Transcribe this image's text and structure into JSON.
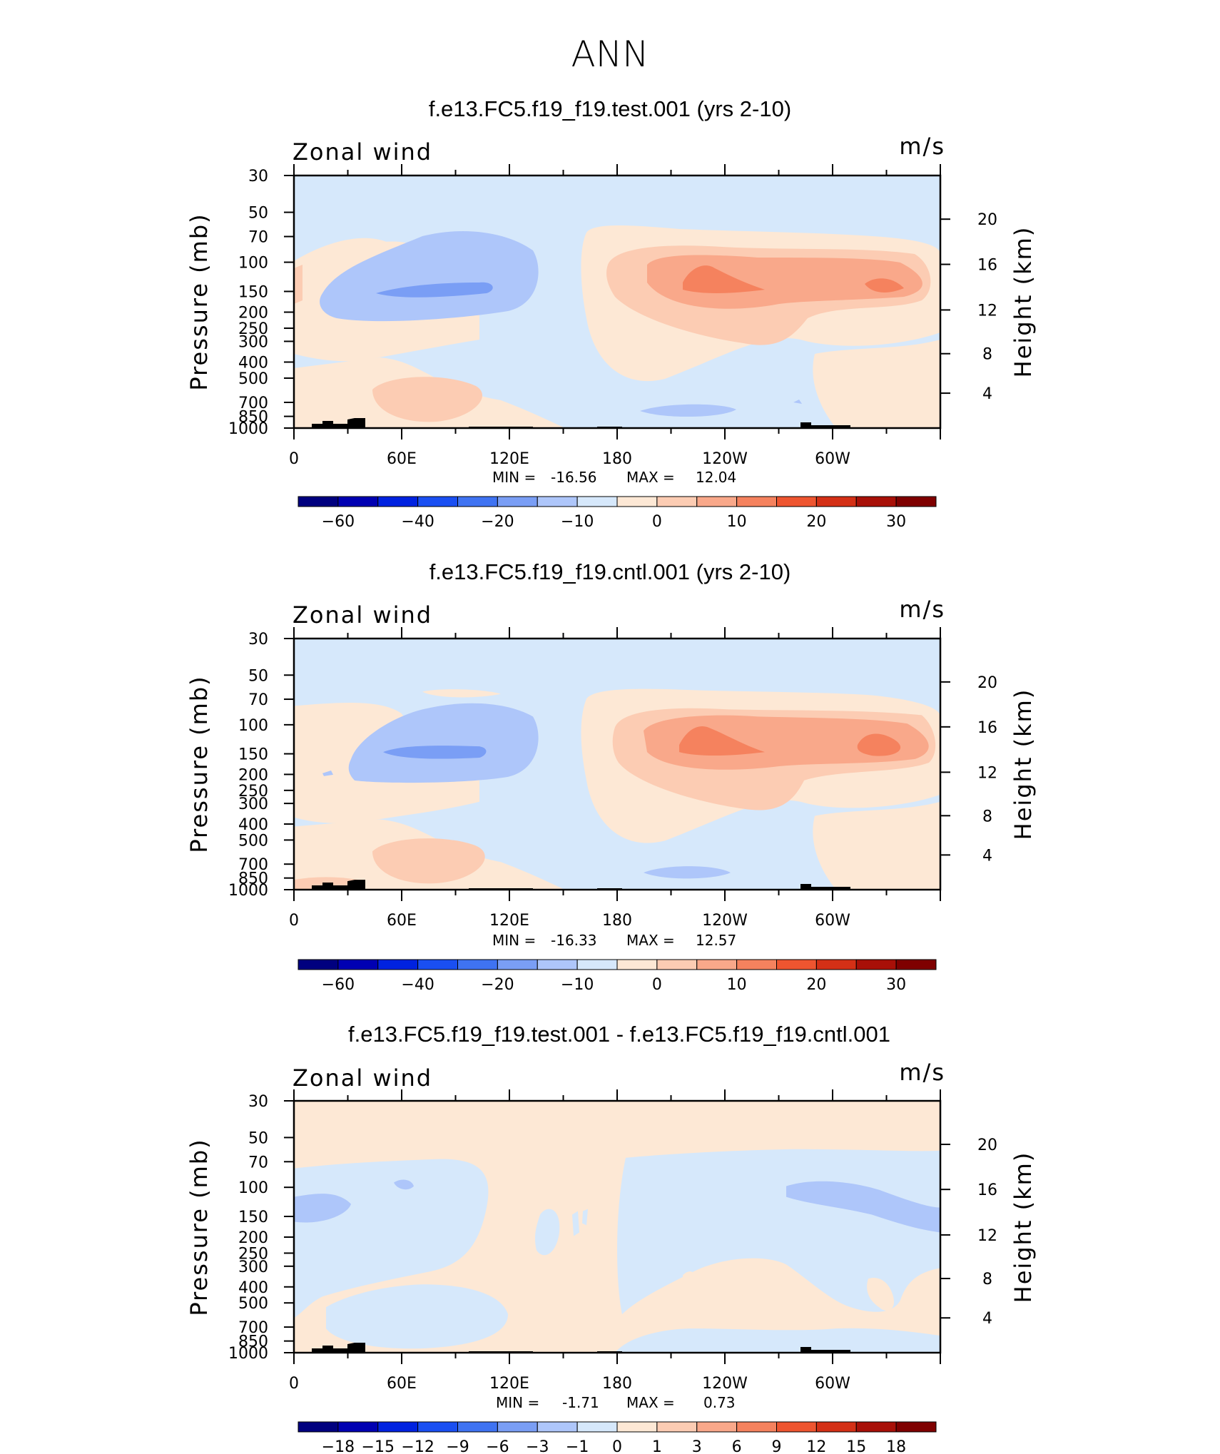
{
  "figure": {
    "title": "ANN"
  },
  "colors": {
    "palette_full": [
      "#00007f",
      "#0000b2",
      "#0022e0",
      "#1a4ff2",
      "#3f73f2",
      "#7a9ef5",
      "#aec6fa",
      "#d6e8fb",
      "#fde8d5",
      "#fcccb3",
      "#f9a88a",
      "#f5825e",
      "#ee5530",
      "#d43016",
      "#a81008",
      "#7f0000"
    ],
    "land": "#000000"
  },
  "chart_data": [
    {
      "type": "contour",
      "title": "f.e13.FC5.f19_f19.test.001 (yrs 2-10)",
      "variable": "Zonal wind",
      "units": "m/s",
      "ylabel": "Pressure (mb)",
      "ylabel_right": "Height (km)",
      "pressure_ticks": [
        "30",
        "50",
        "70",
        "100",
        "150",
        "200",
        "250",
        "300",
        "400",
        "500",
        "700",
        "850",
        "1000"
      ],
      "height_ticks": [
        "20",
        "16",
        "12",
        "8",
        "4"
      ],
      "lon_ticks": [
        "0",
        "60E",
        "120E",
        "180",
        "120W",
        "60W"
      ],
      "min_label": "MIN =",
      "min": "-16.56",
      "max_label": "MAX =",
      "max": "12.04",
      "colorbar_labels": [
        "-60",
        "-40",
        "-20",
        "-10",
        "0",
        "10",
        "20",
        "30"
      ]
    },
    {
      "type": "contour",
      "title": "f.e13.FC5.f19_f19.cntl.001 (yrs 2-10)",
      "variable": "Zonal wind",
      "units": "m/s",
      "ylabel": "Pressure (mb)",
      "ylabel_right": "Height (km)",
      "pressure_ticks": [
        "30",
        "50",
        "70",
        "100",
        "150",
        "200",
        "250",
        "300",
        "400",
        "500",
        "700",
        "850",
        "1000"
      ],
      "height_ticks": [
        "20",
        "16",
        "12",
        "8",
        "4"
      ],
      "lon_ticks": [
        "0",
        "60E",
        "120E",
        "180",
        "120W",
        "60W"
      ],
      "min_label": "MIN =",
      "min": "-16.33",
      "max_label": "MAX =",
      "max": "12.57",
      "colorbar_labels": [
        "-60",
        "-40",
        "-20",
        "-10",
        "0",
        "10",
        "20",
        "30"
      ]
    },
    {
      "type": "contour",
      "title": "f.e13.FC5.f19_f19.test.001 - f.e13.FC5.f19_f19.cntl.001",
      "variable": "Zonal wind",
      "units": "m/s",
      "ylabel": "Pressure (mb)",
      "ylabel_right": "Height (km)",
      "pressure_ticks": [
        "30",
        "50",
        "70",
        "100",
        "150",
        "200",
        "250",
        "300",
        "400",
        "500",
        "700",
        "850",
        "1000"
      ],
      "height_ticks": [
        "20",
        "16",
        "12",
        "8",
        "4"
      ],
      "lon_ticks": [
        "0",
        "60E",
        "120E",
        "180",
        "120W",
        "60W"
      ],
      "min_label": "MIN =",
      "min": "-1.71",
      "max_label": "MAX =",
      "max": "0.73",
      "colorbar_labels": [
        "-18",
        "-15",
        "-12",
        "-9",
        "-6",
        "-3",
        "-1",
        "0",
        "1",
        "3",
        "6",
        "9",
        "12",
        "15",
        "18"
      ]
    }
  ]
}
